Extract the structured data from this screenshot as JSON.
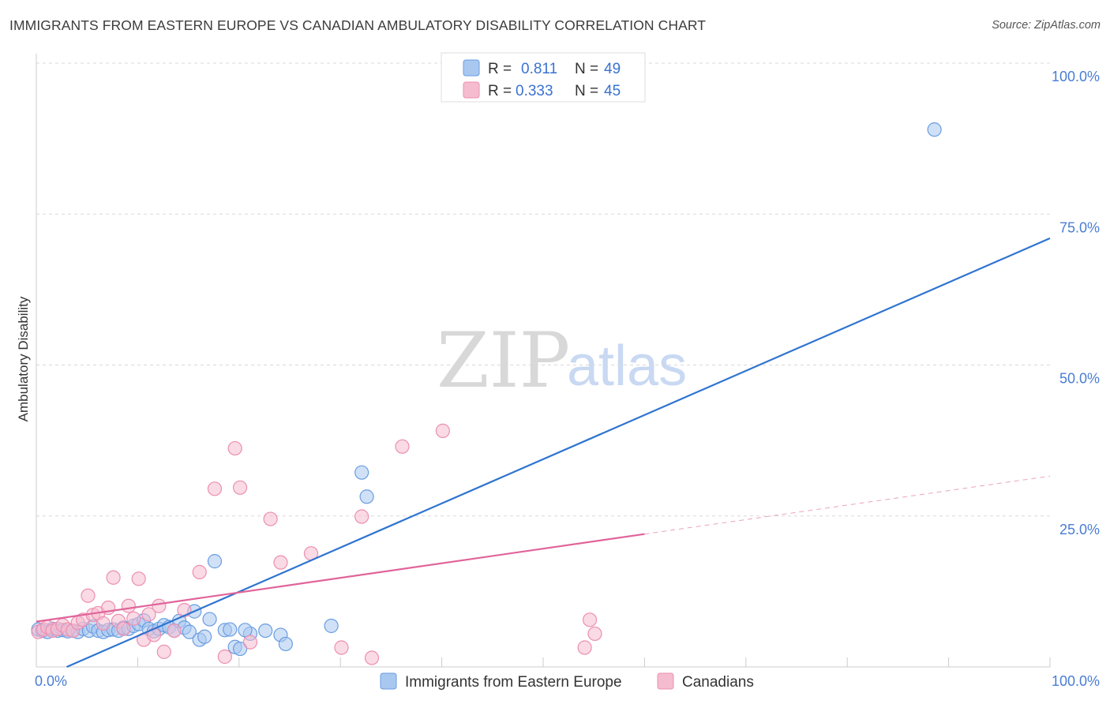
{
  "header": {
    "title": "IMMIGRANTS FROM EASTERN EUROPE VS CANADIAN AMBULATORY DISABILITY CORRELATION CHART",
    "source": "Source: ZipAtlas.com"
  },
  "watermark": {
    "zip": "ZIP",
    "atlas": "atlas"
  },
  "legend_top": {
    "rows": [
      {
        "r_label": "R =",
        "r_value": "0.811",
        "n_label": "N =",
        "n_value": "49"
      },
      {
        "r_label": "R =",
        "r_value": "0.333",
        "n_label": "N =",
        "n_value": "45"
      }
    ]
  },
  "legend_bottom": {
    "items": [
      {
        "label": "Immigrants from Eastern Europe"
      },
      {
        "label": "Canadians"
      }
    ]
  },
  "colors": {
    "blue_fill": "#a9c8f0",
    "blue_stroke": "#6a9de0",
    "blue_line": "#2f74d0",
    "pink_fill": "#f5bcd0",
    "pink_stroke": "#ec8fb0",
    "pink_line": "#e0649a",
    "grid": "#d9d9d9",
    "tick_text": "#4a7dd4"
  },
  "chart_data": {
    "type": "scatter",
    "title": "IMMIGRANTS FROM EASTERN EUROPE VS CANADIAN AMBULATORY DISABILITY CORRELATION CHART",
    "xlabel": "",
    "ylabel": "Ambulatory Disability",
    "xlim": [
      0,
      100
    ],
    "ylim": [
      0,
      100
    ],
    "x_ticks": [
      {
        "value": 0,
        "label": "0.0%"
      },
      {
        "value": 100,
        "label": "100.0%"
      }
    ],
    "y_ticks": [
      {
        "value": 100,
        "label": "100.0%"
      },
      {
        "value": 75,
        "label": "75.0%"
      },
      {
        "value": 50,
        "label": "50.0%"
      },
      {
        "value": 25,
        "label": "25.0%"
      }
    ],
    "grid": true,
    "legend_position": "top-center",
    "series": [
      {
        "name": "Immigrants from Eastern Europe",
        "color": "#a9c8f0",
        "r": 0.811,
        "n": 49,
        "trend": {
          "x0": 3,
          "y0": 0,
          "x1": 100,
          "y1": 71,
          "dashed_extension": false
        },
        "points": [
          [
            0.2,
            6.2
          ],
          [
            0.6,
            6.0
          ],
          [
            1.1,
            5.8
          ],
          [
            1.6,
            6.3
          ],
          [
            2.1,
            6.0
          ],
          [
            2.6,
            6.1
          ],
          [
            3.1,
            5.9
          ],
          [
            3.6,
            6.0
          ],
          [
            4.1,
            5.8
          ],
          [
            4.6,
            6.3
          ],
          [
            5.2,
            6.0
          ],
          [
            5.6,
            6.7
          ],
          [
            6.1,
            6.0
          ],
          [
            6.6,
            5.8
          ],
          [
            7.1,
            6.1
          ],
          [
            7.6,
            6.2
          ],
          [
            8.1,
            6.0
          ],
          [
            8.6,
            6.5
          ],
          [
            9.1,
            6.3
          ],
          [
            9.6,
            6.8
          ],
          [
            10.1,
            7.1
          ],
          [
            10.6,
            7.7
          ],
          [
            11.1,
            6.3
          ],
          [
            11.6,
            5.9
          ],
          [
            12.1,
            6.3
          ],
          [
            12.6,
            6.9
          ],
          [
            13.1,
            6.6
          ],
          [
            13.6,
            6.0
          ],
          [
            14.1,
            7.6
          ],
          [
            14.6,
            6.5
          ],
          [
            15.1,
            5.8
          ],
          [
            15.6,
            9.2
          ],
          [
            16.1,
            4.5
          ],
          [
            16.6,
            5.0
          ],
          [
            17.1,
            7.9
          ],
          [
            17.6,
            17.5
          ],
          [
            18.6,
            6.1
          ],
          [
            19.1,
            6.2
          ],
          [
            19.6,
            3.3
          ],
          [
            20.1,
            3.0
          ],
          [
            21.1,
            5.5
          ],
          [
            20.6,
            6.1
          ],
          [
            22.6,
            6.0
          ],
          [
            24.1,
            5.3
          ],
          [
            24.6,
            3.8
          ],
          [
            29.1,
            6.8
          ],
          [
            32.1,
            32.2
          ],
          [
            32.6,
            28.2
          ],
          [
            88.6,
            89.0
          ]
        ]
      },
      {
        "name": "Canadians",
        "color": "#f5bcd0",
        "r": 0.333,
        "n": 45,
        "trend": {
          "x0": 0,
          "y0": 7.5,
          "x1": 60,
          "y1": 22.0,
          "dashed_to_x": 100,
          "dashed_to_y": 31.6
        },
        "points": [
          [
            0.2,
            5.8
          ],
          [
            0.7,
            6.2
          ],
          [
            1.1,
            6.6
          ],
          [
            1.6,
            6.0
          ],
          [
            2.1,
            6.3
          ],
          [
            2.6,
            6.9
          ],
          [
            3.1,
            6.2
          ],
          [
            3.6,
            6.0
          ],
          [
            4.1,
            7.3
          ],
          [
            4.6,
            7.8
          ],
          [
            5.1,
            11.8
          ],
          [
            5.6,
            8.6
          ],
          [
            6.1,
            8.9
          ],
          [
            6.6,
            7.2
          ],
          [
            7.1,
            9.8
          ],
          [
            7.6,
            14.8
          ],
          [
            8.1,
            7.6
          ],
          [
            8.6,
            6.3
          ],
          [
            9.1,
            10.1
          ],
          [
            9.6,
            8.0
          ],
          [
            10.1,
            14.6
          ],
          [
            10.6,
            4.5
          ],
          [
            11.1,
            8.7
          ],
          [
            11.6,
            5.3
          ],
          [
            12.1,
            10.1
          ],
          [
            12.6,
            2.5
          ],
          [
            13.6,
            6.0
          ],
          [
            14.6,
            9.4
          ],
          [
            16.1,
            15.7
          ],
          [
            17.6,
            29.5
          ],
          [
            18.6,
            1.7
          ],
          [
            19.6,
            36.2
          ],
          [
            20.1,
            29.7
          ],
          [
            21.1,
            4.1
          ],
          [
            23.1,
            24.5
          ],
          [
            24.1,
            17.3
          ],
          [
            27.1,
            18.8
          ],
          [
            30.1,
            3.2
          ],
          [
            32.1,
            24.9
          ],
          [
            33.1,
            1.5
          ],
          [
            36.1,
            36.5
          ],
          [
            40.1,
            39.1
          ],
          [
            54.1,
            3.2
          ],
          [
            54.6,
            7.8
          ],
          [
            55.1,
            5.5
          ]
        ]
      }
    ]
  }
}
